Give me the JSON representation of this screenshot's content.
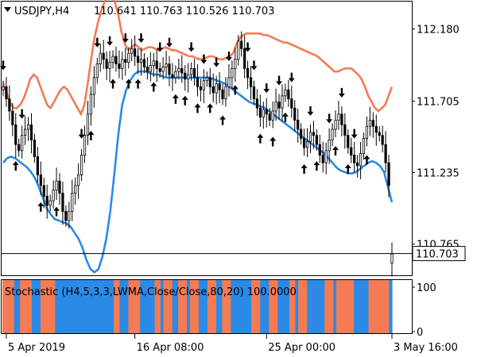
{
  "chart_data": {
    "type": "candlestick",
    "header": {
      "symbol": "USDJPY,H4",
      "ohlc": "110.641 110.763 110.526 110.703"
    },
    "price_axis": {
      "ylim": [
        110.56,
        112.36
      ],
      "ticks": [
        {
          "value": 112.18,
          "label": "112.180"
        },
        {
          "value": 111.705,
          "label": "111.705"
        },
        {
          "value": 111.235,
          "label": "111.235"
        },
        {
          "value": 110.765,
          "label": "110.765"
        }
      ],
      "current_price": {
        "value": 110.703,
        "label": "110.703"
      }
    },
    "time_axis": {
      "ticks": [
        {
          "index": 1,
          "label": "5 Apr 2019"
        },
        {
          "index": 42,
          "label": "16 Apr 08:00"
        },
        {
          "index": 84,
          "label": "25 Apr 00:00"
        },
        {
          "index": 124,
          "label": "3 May 16:00"
        }
      ]
    },
    "colors": {
      "upper_band": "#f47b53",
      "lower_band": "#2b8ae6",
      "candle": "#000000",
      "stoch_up": "#2b8ae6",
      "stoch_down": "#f47b53"
    },
    "candles_close": [
      111.8,
      111.72,
      111.64,
      111.55,
      111.42,
      111.38,
      111.48,
      111.52,
      111.55,
      111.45,
      111.34,
      111.22,
      111.15,
      111.08,
      111.02,
      111.05,
      111.12,
      111.18,
      111.1,
      110.98,
      110.92,
      110.98,
      111.1,
      111.15,
      111.22,
      111.35,
      111.48,
      111.62,
      111.75,
      111.86,
      111.95,
      112.02,
      111.98,
      111.92,
      111.96,
      112.0,
      111.95,
      111.92,
      111.98,
      111.96,
      112.02,
      112.05,
      112.0,
      111.96,
      111.98,
      111.93,
      111.9,
      111.94,
      111.97,
      111.92,
      111.9,
      111.93,
      111.95,
      111.88,
      111.86,
      111.9,
      111.92,
      111.89,
      111.85,
      111.88,
      111.92,
      111.86,
      111.8,
      111.78,
      111.84,
      111.86,
      111.8,
      111.76,
      111.82,
      111.78,
      111.72,
      111.8,
      111.86,
      111.92,
      111.98,
      112.1,
      112.05,
      111.92,
      111.86,
      111.8,
      111.72,
      111.66,
      111.6,
      111.65,
      111.62,
      111.58,
      111.64,
      111.7,
      111.66,
      111.74,
      111.78,
      111.72,
      111.66,
      111.58,
      111.52,
      111.46,
      111.4,
      111.44,
      111.5,
      111.48,
      111.42,
      111.35,
      111.3,
      111.38,
      111.45,
      111.52,
      111.58,
      111.62,
      111.55,
      111.48,
      111.4,
      111.35,
      111.3,
      111.28,
      111.36,
      111.46,
      111.54,
      111.58,
      111.54,
      111.5,
      111.48,
      111.42,
      111.3,
      111.15,
      110.7
    ],
    "candles_open": [
      111.78,
      111.8,
      111.72,
      111.64,
      111.55,
      111.42,
      111.38,
      111.48,
      111.52,
      111.55,
      111.45,
      111.34,
      111.22,
      111.15,
      111.08,
      111.02,
      111.05,
      111.12,
      111.18,
      111.1,
      110.98,
      110.92,
      110.98,
      111.1,
      111.15,
      111.22,
      111.35,
      111.48,
      111.62,
      111.75,
      111.86,
      111.95,
      112.02,
      111.98,
      111.92,
      111.96,
      112.0,
      111.95,
      111.92,
      111.98,
      111.96,
      112.02,
      112.05,
      112.0,
      111.96,
      111.98,
      111.93,
      111.9,
      111.94,
      111.97,
      111.92,
      111.9,
      111.93,
      111.95,
      111.88,
      111.86,
      111.9,
      111.92,
      111.89,
      111.85,
      111.88,
      111.92,
      111.86,
      111.8,
      111.78,
      111.84,
      111.86,
      111.8,
      111.76,
      111.82,
      111.78,
      111.72,
      111.8,
      111.86,
      111.92,
      111.98,
      112.1,
      112.05,
      111.92,
      111.86,
      111.8,
      111.72,
      111.66,
      111.6,
      111.65,
      111.62,
      111.58,
      111.64,
      111.7,
      111.66,
      111.74,
      111.78,
      111.72,
      111.66,
      111.58,
      111.52,
      111.46,
      111.4,
      111.44,
      111.5,
      111.48,
      111.42,
      111.35,
      111.3,
      111.38,
      111.45,
      111.52,
      111.58,
      111.62,
      111.55,
      111.48,
      111.4,
      111.35,
      111.3,
      111.28,
      111.36,
      111.46,
      111.54,
      111.58,
      111.54,
      111.5,
      111.48,
      111.42,
      111.3,
      110.64
    ],
    "upper_band": [
      111.82,
      111.76,
      111.7,
      111.66,
      111.66,
      111.68,
      111.72,
      111.78,
      111.85,
      111.88,
      111.86,
      111.8,
      111.74,
      111.68,
      111.66,
      111.7,
      111.74,
      111.78,
      111.8,
      111.78,
      111.74,
      111.7,
      111.66,
      111.62,
      111.68,
      111.82,
      111.98,
      112.12,
      112.22,
      112.3,
      112.36,
      112.4,
      112.4,
      112.36,
      112.28,
      112.16,
      112.08,
      112.04,
      112.06,
      112.08,
      112.06,
      112.04,
      112.05,
      112.06,
      112.06,
      112.05,
      112.04,
      112.05,
      112.06,
      112.05,
      112.04,
      112.04,
      112.03,
      112.02,
      112.01,
      112.0,
      112.0,
      111.99,
      111.98,
      111.98,
      111.99,
      112.0,
      112.0,
      111.99,
      111.98,
      111.98,
      111.99,
      112.0,
      112.02,
      112.08,
      112.12,
      112.14,
      112.15,
      112.15,
      112.15,
      112.15,
      112.15,
      112.14,
      112.14,
      112.13,
      112.12,
      112.11,
      112.1,
      112.09,
      112.09,
      112.08,
      112.07,
      112.06,
      112.05,
      112.04,
      112.03,
      112.02,
      112.01,
      112.0,
      111.98,
      111.96,
      111.94,
      111.92,
      111.9,
      111.9,
      111.91,
      111.92,
      111.92,
      111.92,
      111.9,
      111.88,
      111.85,
      111.8,
      111.74,
      111.7,
      111.66,
      111.64,
      111.66,
      111.68,
      111.74,
      111.8
    ],
    "lower_band": [
      111.3,
      111.33,
      111.34,
      111.33,
      111.31,
      111.29,
      111.27,
      111.24,
      111.2,
      111.14,
      111.07,
      111.0,
      110.96,
      110.93,
      110.92,
      110.91,
      110.9,
      110.88,
      110.84,
      110.8,
      110.74,
      110.66,
      110.6,
      110.58,
      110.6,
      110.68,
      110.8,
      110.98,
      111.22,
      111.48,
      111.68,
      111.78,
      111.84,
      111.88,
      111.9,
      111.9,
      111.9,
      111.89,
      111.88,
      111.88,
      111.87,
      111.86,
      111.86,
      111.86,
      111.86,
      111.86,
      111.86,
      111.86,
      111.86,
      111.86,
      111.86,
      111.86,
      111.86,
      111.85,
      111.84,
      111.83,
      111.82,
      111.8,
      111.78,
      111.76,
      111.74,
      111.72,
      111.7,
      111.69,
      111.68,
      111.67,
      111.66,
      111.64,
      111.62,
      111.6,
      111.58,
      111.56,
      111.54,
      111.52,
      111.5,
      111.48,
      111.46,
      111.44,
      111.42,
      111.4,
      111.38,
      111.36,
      111.33,
      111.3,
      111.27,
      111.25,
      111.24,
      111.23,
      111.23,
      111.24,
      111.26,
      111.28,
      111.3,
      111.31,
      111.3,
      111.28,
      111.24,
      111.14,
      111.04
    ],
    "arrows_down": [
      0,
      6,
      25,
      30,
      34,
      39,
      44,
      50,
      53,
      60,
      64,
      68,
      72,
      78,
      80,
      84,
      88,
      92,
      98,
      104,
      108,
      112
    ],
    "arrows_up": [
      4,
      12,
      17,
      28,
      35,
      40,
      43,
      48,
      55,
      58,
      62,
      66,
      70,
      74,
      82,
      86,
      90,
      96,
      100,
      106,
      110,
      116
    ],
    "stochastic": {
      "label": "Stochastic (H4,5,3,3,LWMA,Close/Close,80,20) 100.0000",
      "ticks": [
        {
          "value": 100,
          "label": "100"
        },
        {
          "value": 0,
          "label": "0"
        }
      ],
      "bars": "DDDDUUDDDDUUUDDDDDUUUUUUUUUUUUUUUUUUUUDDUUUDDDDUUUUUDDUDDDUUDDDUDDDUUUDDDUUDDDUUUUUUUDDDUUUDDDUUUUDDUDDDUUUUUUDDDUDDDDDDUUUUUDDDDDDDU"
    }
  }
}
